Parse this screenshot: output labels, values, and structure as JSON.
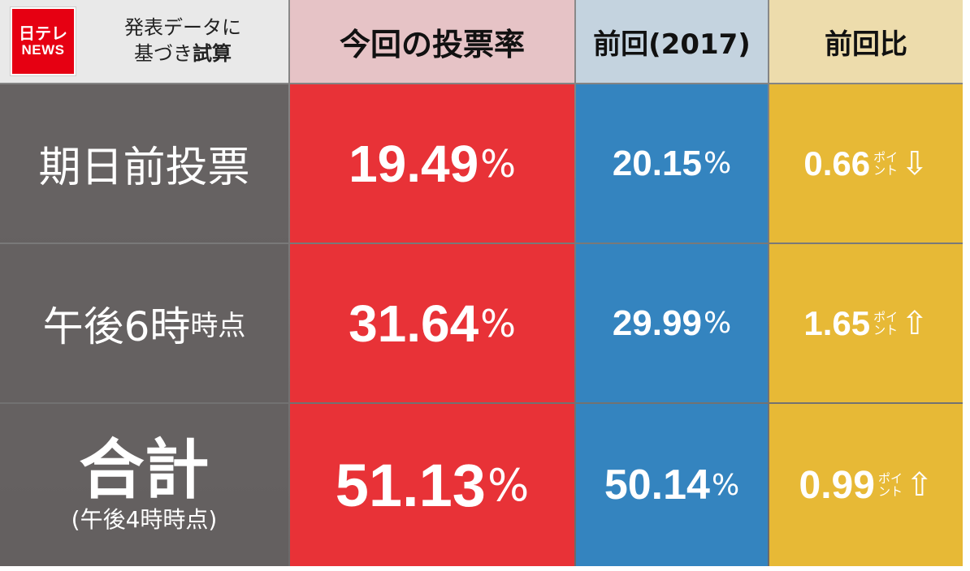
{
  "logo": {
    "line1": "日テレ",
    "line2": "NEWS"
  },
  "header": {
    "note_line1": "発表データに",
    "note_line2_a": "基づき",
    "note_line2_b": "試算",
    "current": "今回の投票率",
    "previous": "前回(2017)",
    "diff": "前回比"
  },
  "unit_pct": "%",
  "unit_point_a": "ポイ",
  "unit_point_b": "ント",
  "rows": [
    {
      "label": "期日前投票",
      "current": "19.49",
      "previous": "20.15",
      "diff": "0.66",
      "direction": "down",
      "arrow": "⇩"
    },
    {
      "label_main": "午後6時",
      "label_small": "時点",
      "current": "31.64",
      "previous": "29.99",
      "diff": "1.65",
      "direction": "up",
      "arrow": "⇧"
    },
    {
      "label_main": "合計",
      "label_sub": "(午後4時時点)",
      "current": "51.13",
      "previous": "50.14",
      "diff": "0.99",
      "direction": "up",
      "arrow": "⇧"
    }
  ],
  "colors": {
    "current": "#e83237",
    "previous": "#3484bf",
    "diff": "#e7b936",
    "label": "#646060",
    "brand": "#e60012"
  }
}
